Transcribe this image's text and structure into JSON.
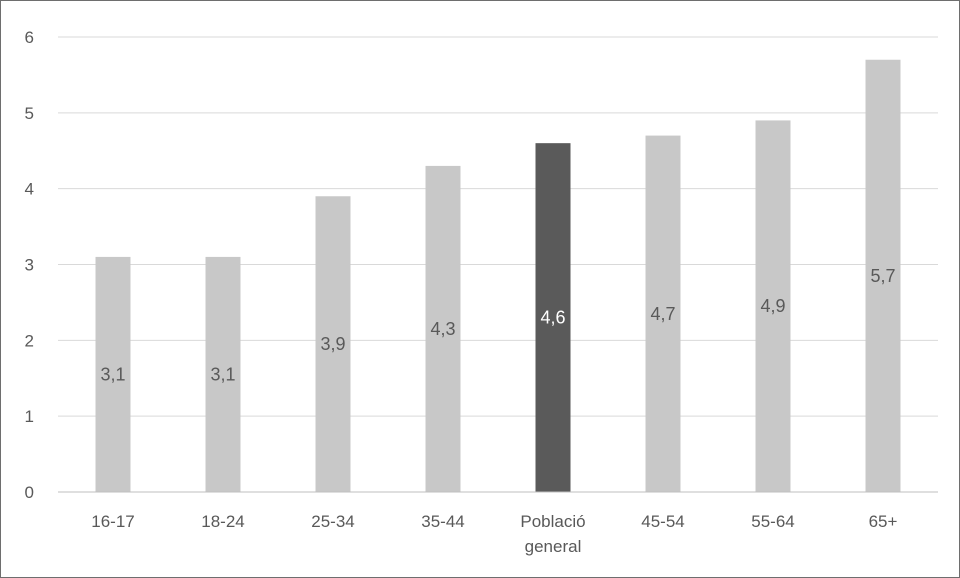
{
  "chart_data": {
    "type": "bar",
    "categories": [
      "16-17",
      "18-24",
      "25-34",
      "35-44",
      "Població general",
      "45-54",
      "55-64",
      "65+"
    ],
    "category_lines": [
      [
        "16-17"
      ],
      [
        "18-24"
      ],
      [
        "25-34"
      ],
      [
        "35-44"
      ],
      [
        "Població",
        "general"
      ],
      [
        "45-54"
      ],
      [
        "55-64"
      ],
      [
        "65+"
      ]
    ],
    "values": [
      3.1,
      3.1,
      3.9,
      4.3,
      4.6,
      4.7,
      4.9,
      5.7
    ],
    "data_labels": [
      "3,1",
      "3,1",
      "3,9",
      "4,3",
      "4,6",
      "4,7",
      "4,9",
      "5,7"
    ],
    "highlight_index": 4,
    "ylim": [
      0,
      6
    ],
    "yticks": [
      0,
      1,
      2,
      3,
      4,
      5,
      6
    ],
    "ytick_labels": [
      "0",
      "1",
      "2",
      "3",
      "4",
      "5",
      "6"
    ],
    "grid": true,
    "colors": {
      "bar": "#c8c8c8",
      "highlight": "#5a5a5a",
      "grid": "#d9d9d9",
      "axis": "#bfbfbf",
      "tick_text": "#595959",
      "label_on_bar": "#595959",
      "label_on_highlight": "#ffffff"
    }
  }
}
